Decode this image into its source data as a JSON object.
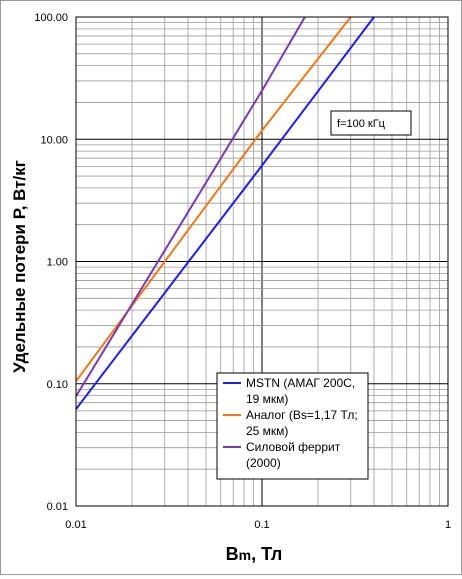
{
  "chart_data": {
    "type": "line",
    "x_scale": "log",
    "y_scale": "log",
    "xlim": [
      0.01,
      1
    ],
    "ylim": [
      0.01,
      100
    ],
    "grid": true,
    "xlabel": "Bm, Тл",
    "ylabel": "Удельные потери Р, Вт/кг",
    "x_tick_labels": [
      "0.01",
      "0.1",
      "1"
    ],
    "y_tick_labels": [
      "0.01",
      "0.10",
      "1.00",
      "10.00",
      "100.00"
    ],
    "annotation": "f=100 кГц",
    "legend_position": "bottom-right",
    "series": [
      {
        "name_lines": [
          "MSTN (АМАГ 200С,",
          "19 мкм)"
        ],
        "color": "#1f1fe8",
        "x": [
          0.01,
          0.1,
          0.4
        ],
        "y": [
          0.062,
          6.1,
          100
        ]
      },
      {
        "name_lines": [
          "Аналог (Bs=1,17 Тл;",
          "25 мкм)"
        ],
        "color": "#f07818",
        "x": [
          0.01,
          0.1,
          0.3
        ],
        "y": [
          0.105,
          11.8,
          100
        ]
      },
      {
        "name_lines": [
          "Силовой феррит",
          "(2000)"
        ],
        "color": "#7a3ab0",
        "x": [
          0.01,
          0.1,
          0.17
        ],
        "y": [
          0.079,
          25,
          100
        ]
      }
    ]
  }
}
